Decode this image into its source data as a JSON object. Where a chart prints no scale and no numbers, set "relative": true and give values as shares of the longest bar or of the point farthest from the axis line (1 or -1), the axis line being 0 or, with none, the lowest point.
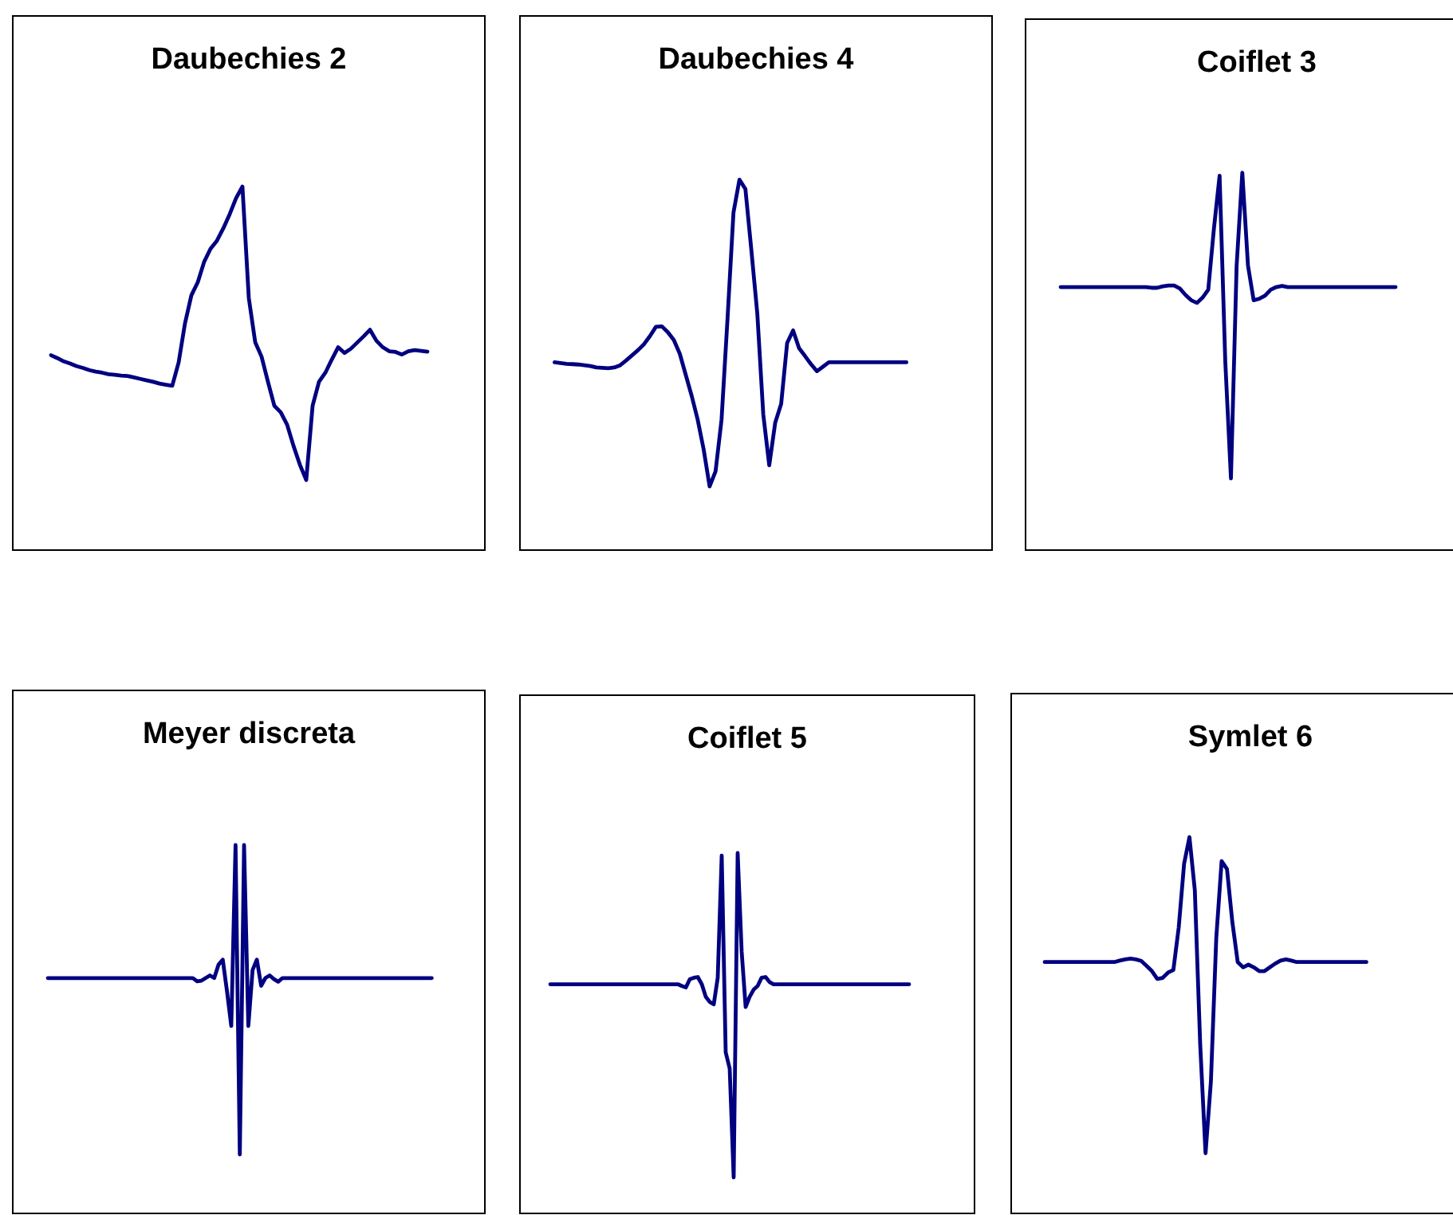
{
  "chart_data": [
    {
      "type": "line",
      "title": "Daubechies 2",
      "relative": true,
      "categories": [
        null,
        null,
        null,
        null,
        null,
        null,
        null,
        null,
        null,
        null,
        null,
        null,
        null,
        null,
        null,
        null,
        null,
        null,
        null,
        null,
        null,
        null,
        null,
        null,
        null,
        null,
        null,
        null,
        null,
        null,
        null,
        null,
        null,
        null,
        null,
        null,
        null,
        null,
        null,
        null,
        null,
        null,
        null,
        null,
        null,
        null,
        null,
        null,
        null,
        null,
        null,
        null,
        null,
        null,
        null,
        null,
        null,
        null,
        null,
        null
      ],
      "series": [
        {
          "color": "#000080",
          "values": [
            0.536,
            0.528,
            0.519,
            0.513,
            0.506,
            0.501,
            0.495,
            0.491,
            0.488,
            0.484,
            0.482,
            0.48,
            0.479,
            0.475,
            0.471,
            0.467,
            0.463,
            0.458,
            0.455,
            0.452,
            0.516,
            0.624,
            0.701,
            0.737,
            0.793,
            0.829,
            0.851,
            0.885,
            0.924,
            0.968,
            1,
            0.693,
            0.572,
            0.532,
            0.463,
            0.397,
            0.379,
            0.345,
            0.287,
            0.235,
            0.193,
            0.397,
            0.463,
            0.488,
            0.524,
            0.558,
            0.542,
            0.554,
            0.571,
            0.588,
            0.606,
            0.576,
            0.558,
            0.547,
            0.545,
            0.538,
            0.547,
            0.55,
            0.548,
            0.546
          ]
        }
      ]
    },
    {
      "type": "line",
      "title": "Daubechies 4",
      "relative": true,
      "categories": [
        null,
        null,
        null,
        null,
        null,
        null,
        null,
        null,
        null,
        null,
        null,
        null,
        null,
        null,
        null,
        null,
        null,
        null,
        null,
        null,
        null,
        null,
        null,
        null,
        null,
        null,
        null,
        null,
        null,
        null,
        null,
        null,
        null,
        null,
        null,
        null,
        null,
        null,
        null,
        null,
        null,
        null,
        null,
        null,
        null,
        null,
        null,
        null,
        null,
        null,
        null,
        null,
        null,
        null,
        null,
        null,
        null,
        null,
        null,
        null
      ],
      "series": [
        {
          "color": "#000080",
          "values": [
            0.507,
            0.505,
            0.503,
            0.502,
            0.501,
            0.499,
            0.497,
            0.493,
            0.492,
            0.491,
            0.493,
            0.499,
            0.512,
            0.526,
            0.54,
            0.556,
            0.578,
            0.603,
            0.604,
            0.588,
            0.567,
            0.53,
            0.473,
            0.416,
            0.352,
            0.272,
            0.172,
            0.213,
            0.352,
            0.624,
            0.911,
            1,
            0.975,
            0.81,
            0.638,
            0.366,
            0.229,
            0.344,
            0.395,
            0.559,
            0.593,
            0.545,
            0.524,
            0.502,
            0.483,
            0.495,
            0.507,
            0.507,
            0.507,
            0.507,
            0.507,
            0.507,
            0.507,
            0.507,
            0.507,
            0.507,
            0.507,
            0.507,
            0.507,
            0.507
          ]
        }
      ]
    },
    {
      "type": "line",
      "title": "Coiflet 3",
      "relative": true,
      "categories": [
        null,
        null,
        null,
        null,
        null,
        null,
        null,
        null,
        null,
        null,
        null,
        null,
        null,
        null,
        null,
        null,
        null,
        null,
        null,
        null,
        null,
        null,
        null,
        null,
        null,
        null,
        null,
        null,
        null,
        null,
        null,
        null,
        null,
        null,
        null,
        null,
        null,
        null,
        null,
        null,
        null,
        null,
        null,
        null,
        null,
        null,
        null,
        null,
        null,
        null,
        null,
        null,
        null,
        null,
        null,
        null,
        null,
        null,
        null,
        null
      ],
      "series": [
        {
          "color": "#000080",
          "values": [
            0.697,
            0.697,
            0.697,
            0.697,
            0.697,
            0.697,
            0.697,
            0.697,
            0.697,
            0.697,
            0.697,
            0.697,
            0.697,
            0.697,
            0.697,
            0.697,
            0.695,
            0.695,
            0.699,
            0.701,
            0.701,
            0.693,
            0.676,
            0.662,
            0.655,
            0.669,
            0.69,
            0.852,
            0.992,
            0.5,
            0.19,
            0.754,
            1,
            0.754,
            0.662,
            0.666,
            0.674,
            0.69,
            0.697,
            0.7,
            0.697,
            0.697,
            0.697,
            0.697,
            0.697,
            0.697,
            0.697,
            0.697,
            0.697,
            0.697,
            0.697,
            0.697,
            0.697,
            0.697,
            0.697,
            0.697,
            0.697,
            0.697,
            0.697,
            0.697
          ]
        }
      ]
    },
    {
      "type": "line",
      "title": "Meyer discreta",
      "relative": true,
      "categories": [
        null,
        null,
        null,
        null,
        null,
        null,
        null,
        null,
        null,
        null,
        null,
        null,
        null,
        null,
        null,
        null,
        null,
        null,
        null,
        null,
        null,
        null,
        null,
        null,
        null,
        null,
        null,
        null,
        null,
        null,
        null,
        null,
        null,
        null,
        null,
        null,
        null,
        null,
        null,
        null,
        null,
        null,
        null,
        null,
        null,
        null,
        null,
        null,
        null,
        null,
        null,
        null,
        null,
        null,
        null,
        null,
        null,
        null,
        null,
        null,
        null,
        null,
        null,
        null,
        null,
        null,
        null,
        null,
        null,
        null,
        null,
        null,
        null,
        null,
        null,
        null,
        null,
        null,
        null,
        null,
        null,
        null,
        null,
        null,
        null,
        null,
        null,
        null,
        null,
        null,
        null
      ],
      "series": [
        {
          "color": "#000080",
          "values": [
            0.639,
            0.639,
            0.639,
            0.639,
            0.639,
            0.639,
            0.639,
            0.639,
            0.639,
            0.639,
            0.639,
            0.639,
            0.639,
            0.639,
            0.639,
            0.639,
            0.639,
            0.639,
            0.639,
            0.639,
            0.639,
            0.639,
            0.639,
            0.639,
            0.639,
            0.639,
            0.639,
            0.639,
            0.639,
            0.639,
            0.639,
            0.639,
            0.639,
            0.639,
            0.639,
            0.63,
            0.632,
            0.639,
            0.646,
            0.639,
            0.675,
            0.689,
            0.603,
            0.509,
            1,
            0.16,
            1,
            0.509,
            0.661,
            0.689,
            0.618,
            0.639,
            0.646,
            0.636,
            0.629,
            0.639,
            0.639,
            0.639,
            0.639,
            0.639,
            0.639,
            0.639,
            0.639,
            0.639,
            0.639,
            0.639,
            0.639,
            0.639,
            0.639,
            0.639,
            0.639,
            0.639,
            0.639,
            0.639,
            0.639,
            0.639,
            0.639,
            0.639,
            0.639,
            0.639,
            0.639,
            0.639,
            0.639,
            0.639,
            0.639,
            0.639,
            0.639,
            0.639,
            0.639,
            0.639,
            0.639
          ]
        }
      ]
    },
    {
      "type": "line",
      "title": "Coiflet 5",
      "relative": true,
      "categories": [
        null,
        null,
        null,
        null,
        null,
        null,
        null,
        null,
        null,
        null,
        null,
        null,
        null,
        null,
        null,
        null,
        null,
        null,
        null,
        null,
        null,
        null,
        null,
        null,
        null,
        null,
        null,
        null,
        null,
        null,
        null,
        null,
        null,
        null,
        null,
        null,
        null,
        null,
        null,
        null,
        null,
        null,
        null,
        null,
        null,
        null,
        null,
        null,
        null,
        null,
        null,
        null,
        null,
        null,
        null,
        null,
        null,
        null,
        null,
        null,
        null,
        null,
        null,
        null,
        null,
        null,
        null,
        null,
        null,
        null,
        null,
        null,
        null,
        null,
        null,
        null,
        null,
        null,
        null,
        null,
        null,
        null,
        null,
        null,
        null,
        null,
        null,
        null,
        null,
        null,
        null
      ],
      "series": [
        {
          "color": "#000080",
          "values": [
            0.636,
            0.636,
            0.636,
            0.636,
            0.636,
            0.636,
            0.636,
            0.636,
            0.636,
            0.636,
            0.636,
            0.636,
            0.636,
            0.636,
            0.636,
            0.636,
            0.636,
            0.636,
            0.636,
            0.636,
            0.636,
            0.636,
            0.636,
            0.636,
            0.636,
            0.636,
            0.636,
            0.636,
            0.636,
            0.636,
            0.636,
            0.636,
            0.636,
            0.631,
            0.627,
            0.65,
            0.654,
            0.656,
            0.636,
            0.601,
            0.587,
            0.58,
            0.654,
            0.993,
            0.447,
            0.402,
            0.1,
            1,
            0.727,
            0.573,
            0.601,
            0.621,
            0.631,
            0.654,
            0.656,
            0.642,
            0.636,
            0.636,
            0.636,
            0.636,
            0.636,
            0.636,
            0.636,
            0.636,
            0.636,
            0.636,
            0.636,
            0.636,
            0.636,
            0.636,
            0.636,
            0.636,
            0.636,
            0.636,
            0.636,
            0.636,
            0.636,
            0.636,
            0.636,
            0.636,
            0.636,
            0.636,
            0.636,
            0.636,
            0.636,
            0.636,
            0.636,
            0.636,
            0.636,
            0.636,
            0.636
          ]
        }
      ]
    },
    {
      "type": "line",
      "title": "Symlet 6",
      "relative": true,
      "categories": [
        null,
        null,
        null,
        null,
        null,
        null,
        null,
        null,
        null,
        null,
        null,
        null,
        null,
        null,
        null,
        null,
        null,
        null,
        null,
        null,
        null,
        null,
        null,
        null,
        null,
        null,
        null,
        null,
        null,
        null,
        null,
        null,
        null,
        null,
        null,
        null,
        null,
        null,
        null,
        null,
        null,
        null,
        null,
        null,
        null,
        null,
        null,
        null,
        null,
        null,
        null,
        null,
        null,
        null,
        null,
        null,
        null,
        null,
        null,
        null,
        null
      ],
      "series": [
        {
          "color": "#000080",
          "values": [
            0.668,
            0.668,
            0.668,
            0.668,
            0.668,
            0.668,
            0.668,
            0.668,
            0.668,
            0.668,
            0.668,
            0.668,
            0.668,
            0.668,
            0.672,
            0.675,
            0.677,
            0.675,
            0.671,
            0.658,
            0.644,
            0.623,
            0.626,
            0.64,
            0.647,
            0.76,
            0.929,
            1,
            0.859,
            0.45,
            0.16,
            0.351,
            0.732,
            0.936,
            0.915,
            0.774,
            0.668,
            0.654,
            0.661,
            0.654,
            0.644,
            0.644,
            0.654,
            0.664,
            0.672,
            0.675,
            0.672,
            0.668,
            0.668,
            0.668,
            0.668,
            0.668,
            0.668,
            0.668,
            0.668,
            0.668,
            0.668,
            0.668,
            0.668,
            0.668,
            0.668
          ]
        }
      ]
    }
  ]
}
